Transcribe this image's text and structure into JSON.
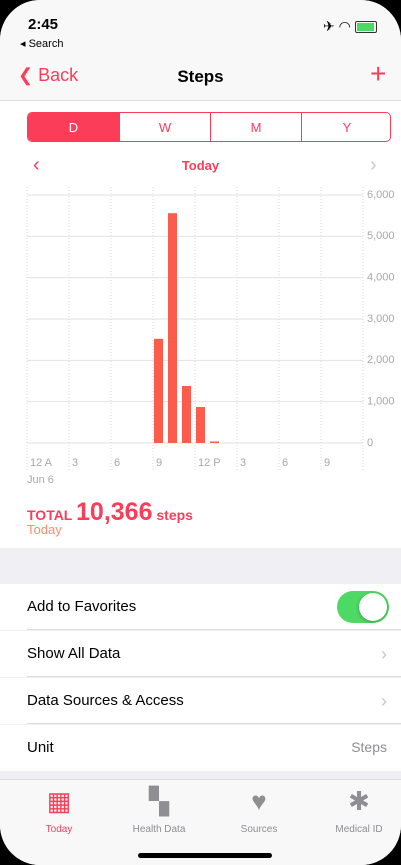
{
  "status": {
    "time": "2:45",
    "back_app": "◂ Search"
  },
  "nav": {
    "back": "Back",
    "title": "Steps",
    "add": "+"
  },
  "segments": [
    "D",
    "W",
    "M",
    "Y"
  ],
  "period": "Today",
  "chart_data": {
    "type": "bar",
    "color": "#fc5c4c",
    "categories": [
      "12 A",
      null,
      null,
      "3",
      null,
      null,
      "6",
      null,
      null,
      "9",
      null,
      null,
      "12 P",
      null,
      null,
      "3",
      null,
      null,
      "6",
      null,
      null,
      "9",
      null,
      null
    ],
    "values": [
      0,
      0,
      0,
      0,
      0,
      0,
      0,
      0,
      0,
      2520,
      5560,
      1380,
      870,
      36,
      0,
      0,
      0,
      0,
      0,
      0,
      0,
      0,
      0,
      0
    ],
    "ylim": [
      0,
      6000
    ],
    "yticks": [
      0,
      {
        "value": 1000,
        "label": "1,000"
      },
      {
        "value": 2000,
        "label": "2,000"
      },
      {
        "value": 3000,
        "label": "3,000"
      },
      {
        "value": 4000,
        "label": "4,000"
      },
      {
        "value": 5000,
        "label": "5,000"
      },
      {
        "value": 6000,
        "label": "6,000"
      }
    ],
    "grid": true,
    "date": "Jun 6"
  },
  "summary": {
    "label": "TOTAL",
    "total": "10,366",
    "unit": "steps",
    "period": "Today"
  },
  "rows": [
    {
      "label": "Add to Favorites"
    },
    {
      "label": "Show All Data"
    },
    {
      "label": "Data Sources & Access"
    },
    {
      "label": "Unit",
      "value": "Steps"
    }
  ],
  "tabs": [
    "Today",
    "Health Data",
    "Sources",
    "Medical ID"
  ]
}
